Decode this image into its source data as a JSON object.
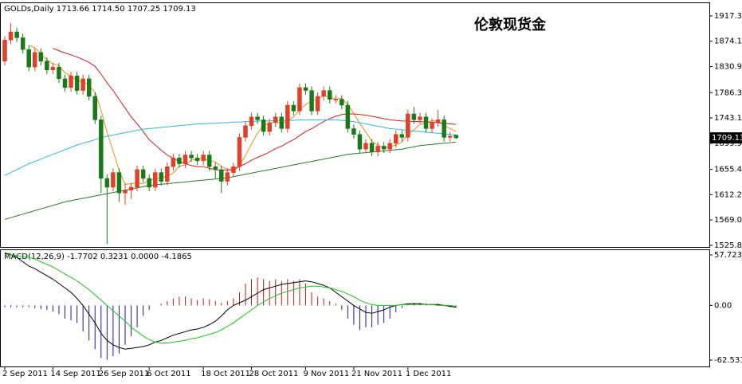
{
  "chart_data": [
    {
      "type": "candlestick",
      "title": "伦敦现货金",
      "header": "GOLDs,Daily  1713.66 1714.50 1707.25 1709.13",
      "categories": [
        "2 Sep 2011",
        null,
        null,
        null,
        null,
        null,
        null,
        null,
        "14 Sep 2011",
        null,
        null,
        null,
        null,
        null,
        null,
        null,
        "26 Sep 2011",
        null,
        null,
        null,
        null,
        null,
        null,
        null,
        "6 Oct 2011",
        null,
        null,
        null,
        null,
        null,
        null,
        null,
        null,
        "18 Oct 2011",
        null,
        null,
        null,
        null,
        null,
        null,
        null,
        "28 Oct 2011",
        null,
        null,
        null,
        null,
        null,
        null,
        null,
        null,
        "9 Nov 2011",
        null,
        null,
        null,
        null,
        null,
        null,
        null,
        "21 Nov 2011",
        null,
        null,
        null,
        null,
        null,
        null,
        null,
        null,
        "1 Dec 2011",
        null,
        null,
        null,
        null,
        null,
        null,
        null,
        null
      ],
      "open": [
        1840,
        1876,
        1890,
        1880,
        1860,
        1830,
        1855,
        1840,
        1825,
        1830,
        1810,
        1795,
        1815,
        1790,
        1810,
        1780,
        1740,
        1640,
        1625,
        1650,
        1615,
        1620,
        1625,
        1655,
        1640,
        1625,
        1650,
        1635,
        1660,
        1675,
        1665,
        1680,
        1675,
        1670,
        1680,
        1660,
        1655,
        1635,
        1650,
        1660,
        1710,
        1730,
        1745,
        1740,
        1720,
        1735,
        1745,
        1725,
        1765,
        1755,
        1795,
        1790,
        1755,
        1780,
        1790,
        1775,
        1775,
        1765,
        1725,
        1715,
        1690,
        1700,
        1685,
        1695,
        1690,
        1700,
        1715,
        1710,
        1750,
        1740,
        1745,
        1725,
        1735,
        1740,
        1710,
        1713.66
      ],
      "high": [
        1883,
        1905,
        1897,
        1887,
        1867,
        1862,
        1862,
        1847,
        1837,
        1837,
        1817,
        1822,
        1822,
        1817,
        1817,
        1787,
        1747,
        1647,
        1657,
        1657,
        1632,
        1632,
        1662,
        1662,
        1647,
        1657,
        1657,
        1667,
        1682,
        1682,
        1687,
        1687,
        1682,
        1687,
        1687,
        1667,
        1662,
        1657,
        1667,
        1717,
        1737,
        1752,
        1752,
        1747,
        1742,
        1752,
        1752,
        1772,
        1772,
        1802,
        1802,
        1797,
        1787,
        1797,
        1797,
        1782,
        1782,
        1772,
        1732,
        1722,
        1707,
        1707,
        1702,
        1702,
        1707,
        1722,
        1722,
        1757,
        1762,
        1752,
        1752,
        1742,
        1757,
        1747,
        1719,
        1714.5
      ],
      "low": [
        1833,
        1869,
        1873,
        1853,
        1823,
        1823,
        1833,
        1818,
        1818,
        1803,
        1788,
        1788,
        1783,
        1783,
        1773,
        1733,
        1615,
        1528,
        1618,
        1600,
        1595,
        1605,
        1618,
        1633,
        1618,
        1618,
        1628,
        1628,
        1653,
        1658,
        1658,
        1668,
        1663,
        1663,
        1653,
        1640,
        1615,
        1628,
        1643,
        1653,
        1703,
        1723,
        1733,
        1713,
        1713,
        1728,
        1718,
        1718,
        1748,
        1748,
        1783,
        1748,
        1748,
        1773,
        1768,
        1768,
        1758,
        1718,
        1708,
        1683,
        1683,
        1678,
        1678,
        1683,
        1683,
        1693,
        1703,
        1703,
        1733,
        1733,
        1718,
        1718,
        1728,
        1703,
        1703,
        1707.25
      ],
      "close": [
        1876,
        1890,
        1880,
        1860,
        1830,
        1855,
        1840,
        1825,
        1830,
        1810,
        1795,
        1815,
        1790,
        1810,
        1780,
        1740,
        1640,
        1625,
        1650,
        1615,
        1620,
        1625,
        1655,
        1640,
        1625,
        1650,
        1635,
        1660,
        1675,
        1665,
        1680,
        1675,
        1670,
        1680,
        1660,
        1655,
        1635,
        1650,
        1660,
        1710,
        1730,
        1745,
        1740,
        1720,
        1735,
        1745,
        1725,
        1765,
        1755,
        1795,
        1790,
        1755,
        1780,
        1790,
        1775,
        1775,
        1765,
        1725,
        1715,
        1690,
        1700,
        1685,
        1695,
        1690,
        1700,
        1715,
        1710,
        1750,
        1740,
        1745,
        1725,
        1735,
        1740,
        1710,
        1712,
        1709.13
      ],
      "up_color": "#e0402a",
      "down_color": "#1a7a1a",
      "lines": [
        {
          "color": "#e8901c",
          "values": [
            null,
            null,
            null,
            null,
            1867,
            1863,
            1853,
            1842,
            1836,
            1832,
            1820,
            1815,
            1806,
            1806,
            1798,
            1787,
            1756,
            1719,
            1687,
            1654,
            1630,
            1631,
            1633,
            1631,
            1637,
            1639,
            1641,
            1644,
            1649,
            1661,
            1663,
            1671,
            1673,
            1674,
            1670,
            1668,
            1660,
            1656,
            1652,
            1662,
            1679,
            1699,
            1717,
            1731,
            1734,
            1737,
            1733,
            1738,
            1745,
            1757,
            1766,
            1772,
            1775,
            1782,
            1778,
            1775,
            1777,
            1766,
            1751,
            1734,
            1719,
            1703,
            1697,
            1692,
            1694,
            1697,
            1702,
            1715,
            1723,
            1732,
            1734,
            1739,
            1737,
            1731,
            1725,
            1720
          ]
        },
        {
          "color": "#d42020",
          "values": [
            null,
            null,
            null,
            null,
            null,
            null,
            null,
            null,
            1862,
            1858,
            1854,
            1851,
            1847,
            1843,
            1838,
            1831,
            1818,
            1803,
            1790,
            1775,
            1760,
            1745,
            1733,
            1720,
            1706,
            1697,
            1688,
            1680,
            1674,
            1669,
            1665,
            1662,
            1660,
            1660,
            1657,
            1655,
            1654,
            1654,
            1656,
            1660,
            1665,
            1671,
            1676,
            1680,
            1685,
            1691,
            1695,
            1701,
            1706,
            1713,
            1720,
            1725,
            1731,
            1737,
            1742,
            1746,
            1749,
            1750,
            1750,
            1749,
            1748,
            1746,
            1744,
            1742,
            1740,
            1739,
            1738,
            1738,
            1737,
            1737,
            1736,
            1736,
            1735,
            1734,
            1733,
            1732
          ]
        },
        {
          "color": "#30b8e8",
          "values": [
            1645,
            1650,
            1655,
            1660,
            1665,
            1669,
            1673,
            1677,
            1681,
            1685,
            1689,
            1693,
            1697,
            1700,
            1703,
            1706,
            1709,
            1712,
            1714,
            1716,
            1718,
            1720,
            1722,
            1724,
            1725,
            1726,
            1727,
            1728,
            1729,
            1730,
            1731,
            1732,
            1733,
            1733,
            1734,
            1734,
            1735,
            1735,
            1736,
            1736,
            1737,
            1737,
            1738,
            1738,
            1738,
            1739,
            1739,
            1739,
            1739,
            1740,
            1740,
            1740,
            1740,
            1740,
            1740,
            1740,
            1739,
            1738,
            1737,
            1735,
            1733,
            1731,
            1729,
            1727,
            1725,
            1724,
            1723,
            1722,
            1721,
            1720,
            1719,
            1718,
            1717,
            1716,
            1715,
            1714
          ]
        },
        {
          "color": "#2a7a2a",
          "values": [
            1570,
            1573,
            1576,
            1579,
            1582,
            1585,
            1588,
            1591,
            1594,
            1597,
            1600,
            1602,
            1604,
            1606,
            1608,
            1610,
            1612,
            1614,
            1616,
            1618,
            1620,
            1622,
            1624,
            1626,
            1628,
            1629,
            1630,
            1631,
            1632,
            1633,
            1634,
            1635,
            1636,
            1637,
            1638,
            1639,
            1640,
            1641,
            1643,
            1645,
            1647,
            1649,
            1651,
            1653,
            1655,
            1657,
            1659,
            1661,
            1663,
            1665,
            1667,
            1669,
            1671,
            1673,
            1675,
            1677,
            1679,
            1681,
            1682,
            1683,
            1684,
            1685,
            1686,
            1687,
            1688,
            1689,
            1690,
            1692,
            1694,
            1696,
            1697,
            1698,
            1699,
            1700,
            1701,
            1702
          ]
        }
      ],
      "ylim": [
        1523,
        1939
      ],
      "yticks": [
        {
          "value": 1917.3,
          "label": "1917.30"
        },
        {
          "value": 1874.1,
          "label": "1874.10"
        },
        {
          "value": 1830.9,
          "label": "1830.90"
        },
        1786.35,
        {
          "value": 1743.15,
          "label": "1743.15"
        },
        1699.95,
        {
          "value": 1655.4,
          "label": "1655.40"
        },
        {
          "value": 1612.2,
          "label": "1612.20"
        },
        {
          "value": 1569,
          "label": "1569.00"
        },
        {
          "value": 1525.8,
          "label": "1525.80"
        }
      ],
      "last_price": 1709.13
    },
    {
      "type": "macd",
      "label": "MACD(12,26,9) -1.7702 0.3231 0.0000 -4.1865",
      "histogram": [
        -2,
        -2,
        -2,
        -2,
        -2,
        -3,
        -4,
        -5,
        -7,
        -10,
        -15,
        -17,
        -20,
        -30,
        -40,
        -50,
        -60,
        -62,
        -58,
        -55,
        -45,
        -35,
        -25,
        -12,
        -5,
        0,
        2,
        5,
        8,
        10,
        10,
        8,
        6,
        8,
        7,
        5,
        3,
        5,
        8,
        15,
        25,
        30,
        32,
        30,
        28,
        30,
        28,
        30,
        28,
        30,
        25,
        15,
        10,
        8,
        5,
        2,
        -5,
        -15,
        -22,
        -28,
        -25,
        -25,
        -22,
        -20,
        -15,
        -8,
        -3,
        2,
        3,
        3,
        2,
        1,
        2,
        -1,
        -2,
        -2
      ],
      "pos_color": "#c01818",
      "neg_color": "#1818b0",
      "series": [
        {
          "color": "#000000",
          "values": [
            60,
            58,
            55,
            50,
            45,
            42,
            38,
            34,
            30,
            25,
            20,
            15,
            8,
            0,
            -10,
            -20,
            -32,
            -40,
            -45,
            -48,
            -50,
            -49,
            -48,
            -47,
            -45,
            -42,
            -40,
            -37,
            -34,
            -32,
            -30,
            -28,
            -27,
            -25,
            -22,
            -18,
            -12,
            -5,
            0,
            3,
            6,
            10,
            14,
            18,
            20,
            22,
            24,
            25,
            26,
            27,
            28,
            27,
            25,
            23,
            20,
            15,
            10,
            5,
            0,
            -4,
            -8,
            -9,
            -7,
            -5,
            -2,
            0,
            1,
            2,
            2,
            2,
            1,
            1,
            1,
            0,
            -1,
            -2
          ]
        },
        {
          "color": "#20c020",
          "values": [
            58,
            58,
            57,
            56,
            55,
            53,
            50,
            47,
            44,
            40,
            36,
            32,
            28,
            23,
            18,
            12,
            6,
            0,
            -6,
            -12,
            -18,
            -25,
            -30,
            -35,
            -39,
            -42,
            -43,
            -43,
            -42,
            -41,
            -40,
            -38,
            -37,
            -35,
            -33,
            -31,
            -28,
            -24,
            -20,
            -15,
            -10,
            -5,
            0,
            4,
            8,
            11,
            14,
            16,
            18,
            20,
            21,
            22,
            22,
            21,
            20,
            18,
            16,
            13,
            10,
            6,
            3,
            1,
            0,
            0,
            0,
            0,
            1,
            1,
            1,
            1,
            1,
            1,
            0,
            0,
            0,
            -1
          ]
        }
      ],
      "ylim": [
        -69.8,
        63.2
      ],
      "yticks": [
        57.7231,
        {
          "value": 0,
          "label": "0.00"
        },
        -62.5317
      ]
    }
  ]
}
